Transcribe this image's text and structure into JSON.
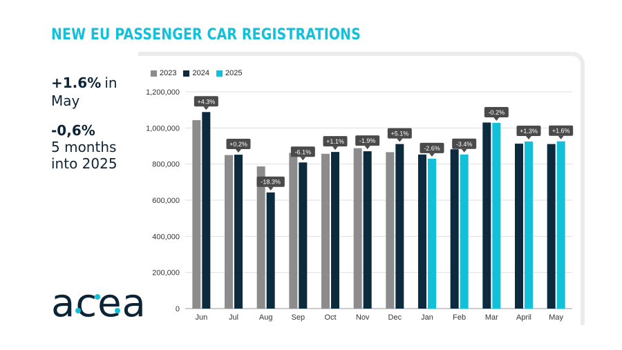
{
  "title": "NEW EU PASSENGER CAR REGISTRATIONS",
  "stats": {
    "may_value": "+1.6%",
    "may_text": "in May",
    "ytd_value": "-0,6%",
    "ytd_text": "5 months into 2025"
  },
  "logo": {
    "text": "acea"
  },
  "colors": {
    "y2023": "#8c8c8c",
    "y2024": "#0d2b3e",
    "y2025": "#13c0da",
    "label_bg": "#4a4a4a",
    "accent": "#13c0da"
  },
  "chart_data": {
    "type": "bar",
    "categories": [
      "Jun",
      "Jul",
      "Aug",
      "Sep",
      "Oct",
      "Nov",
      "Dec",
      "Jan",
      "Feb",
      "Mar",
      "April",
      "May"
    ],
    "series": [
      {
        "name": "2023",
        "values": [
          1043000,
          850000,
          787000,
          862000,
          857000,
          888000,
          866000,
          null,
          null,
          null,
          null,
          null
        ]
      },
      {
        "name": "2024",
        "values": [
          1088000,
          852000,
          643000,
          809000,
          867000,
          871000,
          911000,
          853000,
          882000,
          1030000,
          913000,
          911000
        ]
      },
      {
        "name": "2025",
        "values": [
          null,
          null,
          null,
          null,
          null,
          null,
          null,
          830000,
          853000,
          1028000,
          925000,
          926000
        ]
      }
    ],
    "annotations": [
      "+4.3%",
      "+0.2%",
      "-18.3%",
      "-6.1%",
      "+1.1%",
      "-1.9%",
      "+5.1%",
      "-2.6%",
      "-3.4%",
      "-0.2%",
      "+1.3%",
      "+1.6%"
    ],
    "yticks": [
      "0",
      "200,000",
      "400,000",
      "600,000",
      "800,000",
      "1,000,000",
      "1,200,000"
    ],
    "ylim": [
      0,
      1200000
    ],
    "grid": true,
    "legend_position": "top-left"
  }
}
